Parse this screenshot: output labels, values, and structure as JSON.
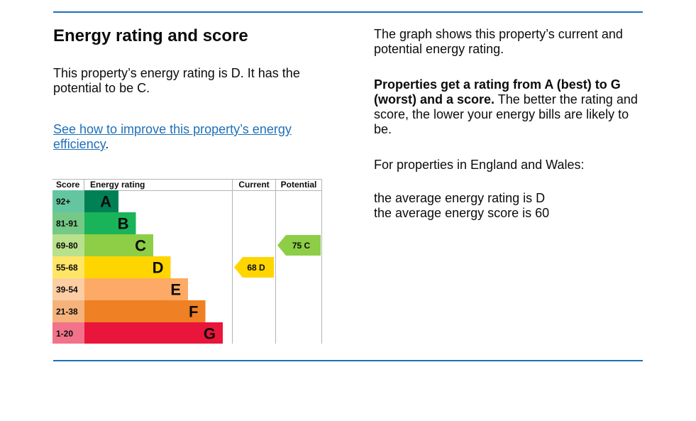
{
  "heading": "Energy rating and score",
  "intro": "This property’s energy rating is D. It has the potential to be C.",
  "link": {
    "text": "See how to improve this property’s energy efficiency",
    "suffix": "."
  },
  "side": {
    "p1": "The graph shows this property’s current and potential energy rating.",
    "p2_bold": "Properties get a rating from A (best) to G (worst) and a score.",
    "p2_rest": " The better the rating and score, the lower your energy bills are likely to be.",
    "p3": "For properties in England and Wales:",
    "avg_rating": "the average energy rating is D",
    "avg_score": "the average energy score is 60"
  },
  "chart_data": {
    "type": "table",
    "headers": {
      "score": "Score",
      "rating": "Energy rating",
      "current": "Current",
      "potential": "Potential"
    },
    "bands": [
      {
        "range": "92+",
        "letter": "A",
        "color": "#008054",
        "score_bg": "#64c6a0"
      },
      {
        "range": "81-91",
        "letter": "B",
        "color": "#19b459",
        "score_bg": "#75c987"
      },
      {
        "range": "69-80",
        "letter": "C",
        "color": "#8dce46",
        "score_bg": "#b9e18b"
      },
      {
        "range": "55-68",
        "letter": "D",
        "color": "#ffd500",
        "score_bg": "#ffe566"
      },
      {
        "range": "39-54",
        "letter": "E",
        "color": "#fcaa65",
        "score_bg": "#fdcda3"
      },
      {
        "range": "21-38",
        "letter": "F",
        "color": "#ef8023",
        "score_bg": "#f5b37b"
      },
      {
        "range": "1-20",
        "letter": "G",
        "color": "#e9153b",
        "score_bg": "#f27389"
      }
    ],
    "current": {
      "score": 68,
      "letter": "D",
      "label": "68  D",
      "color": "#ffd500"
    },
    "potential": {
      "score": 75,
      "letter": "C",
      "label": "75  C",
      "color": "#8dce46"
    }
  }
}
